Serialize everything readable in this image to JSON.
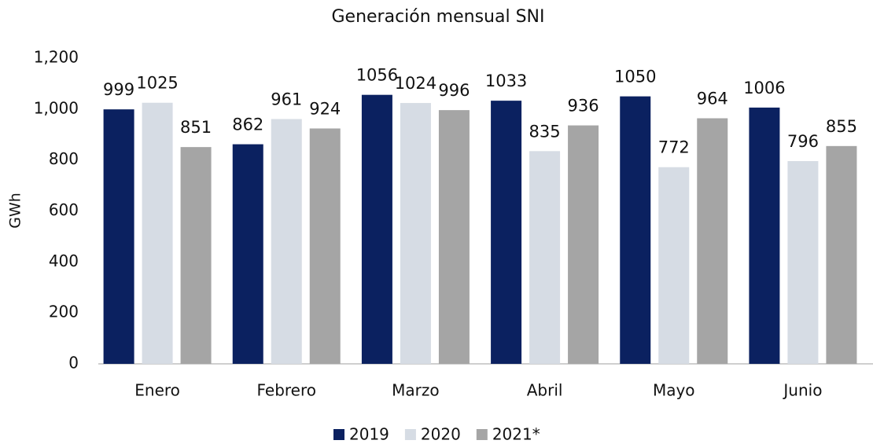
{
  "chart_data": {
    "type": "bar",
    "title": "Generación mensual SNI",
    "y_label": "GWh",
    "categories": [
      "Enero",
      "Febrero",
      "Marzo",
      "Abril",
      "Mayo",
      "Junio"
    ],
    "series": [
      {
        "name": "2019",
        "color": "#0b2160",
        "values": [
          999,
          862,
          1056,
          1033,
          1050,
          1006
        ]
      },
      {
        "name": "2020",
        "color": "#d6dce4",
        "values": [
          1025,
          961,
          1024,
          835,
          772,
          796
        ]
      },
      {
        "name": "2021*",
        "color": "#a5a5a5",
        "values": [
          851,
          924,
          996,
          936,
          964,
          855
        ]
      }
    ],
    "ylim": [
      0,
      1200
    ],
    "yticks": [
      0,
      200,
      400,
      600,
      800,
      {
        "value": 1000,
        "label": "1,000"
      },
      {
        "value": 1200,
        "label": "1,200"
      }
    ],
    "grid": false,
    "legend": "bottom"
  }
}
